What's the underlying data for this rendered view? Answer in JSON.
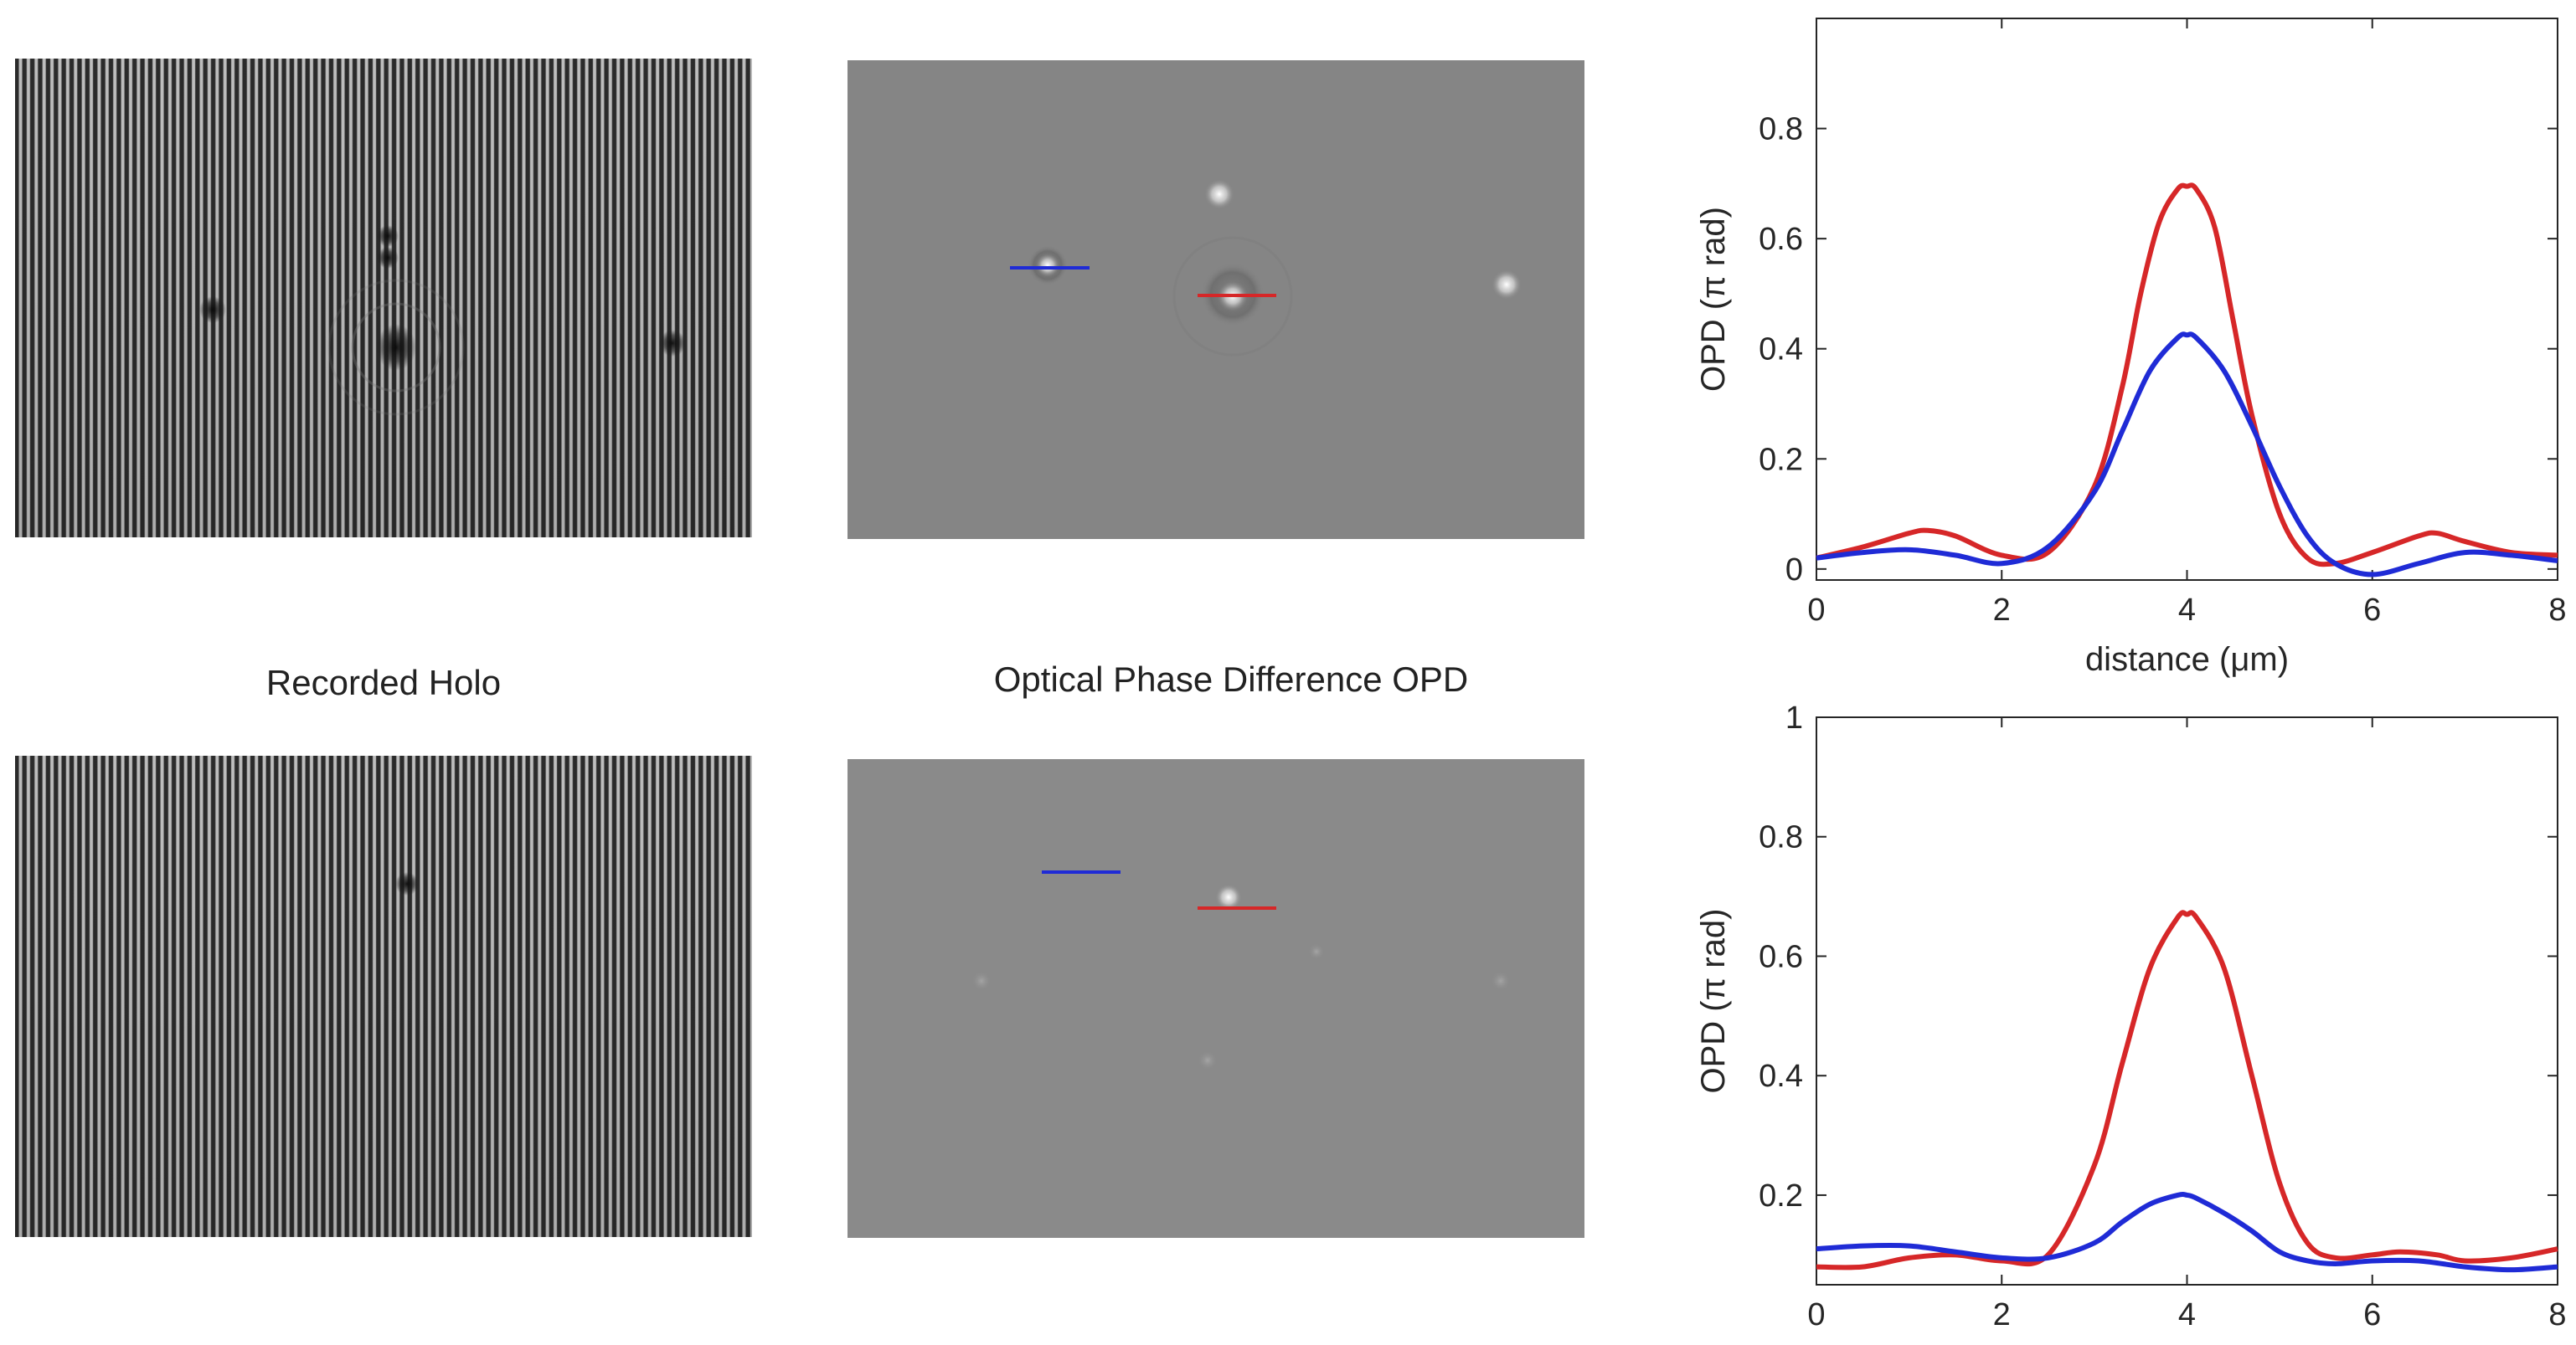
{
  "captions": {
    "holo": "Recorded Holo",
    "opd": "Optical Phase Difference OPD"
  },
  "colors": {
    "red": "#d62728",
    "blue": "#1f2bd6",
    "axis": "#262626"
  },
  "chart_data": [
    {
      "type": "line",
      "title": "",
      "xlabel": "distance (μm)",
      "ylabel": "OPD (π rad)",
      "xlim": [
        0,
        8
      ],
      "ylim": [
        -0.02,
        1.0
      ],
      "xticks": [
        "0",
        "2",
        "4",
        "6",
        "8"
      ],
      "yticks": [
        "0",
        "0.2",
        "0.4",
        "0.6",
        "0.8"
      ],
      "series": [
        {
          "color": "#d62728",
          "x": [
            0,
            0.5,
            1.0,
            1.2,
            1.5,
            2.0,
            2.5,
            3.0,
            3.3,
            3.5,
            3.7,
            3.9,
            4.0,
            4.1,
            4.3,
            4.5,
            4.7,
            5.0,
            5.3,
            5.6,
            6.0,
            6.5,
            6.7,
            7.0,
            7.5,
            8.0
          ],
          "y": [
            0.02,
            0.04,
            0.065,
            0.07,
            0.06,
            0.025,
            0.03,
            0.15,
            0.33,
            0.5,
            0.63,
            0.69,
            0.695,
            0.69,
            0.62,
            0.45,
            0.28,
            0.1,
            0.02,
            0.01,
            0.03,
            0.06,
            0.065,
            0.05,
            0.03,
            0.025
          ]
        },
        {
          "color": "#1f2bd6",
          "x": [
            0,
            0.5,
            1.0,
            1.5,
            2.0,
            2.5,
            3.0,
            3.3,
            3.6,
            3.9,
            4.0,
            4.1,
            4.4,
            4.7,
            5.0,
            5.3,
            5.6,
            6.0,
            6.5,
            7.0,
            7.5,
            8.0
          ],
          "y": [
            0.02,
            0.03,
            0.035,
            0.025,
            0.01,
            0.04,
            0.14,
            0.25,
            0.36,
            0.42,
            0.425,
            0.42,
            0.36,
            0.26,
            0.15,
            0.06,
            0.01,
            -0.01,
            0.01,
            0.03,
            0.025,
            0.015
          ]
        }
      ]
    },
    {
      "type": "line",
      "title": "",
      "xlabel": "",
      "ylabel": "OPD (π rad)",
      "xlim": [
        0,
        8
      ],
      "ylim": [
        0.05,
        1.0
      ],
      "xticks": [
        "0",
        "2",
        "4",
        "6",
        "8"
      ],
      "yticks": [
        "0.2",
        "0.4",
        "0.6",
        "0.8",
        "1"
      ],
      "series": [
        {
          "color": "#d62728",
          "x": [
            0,
            0.5,
            1.0,
            1.5,
            2.0,
            2.5,
            3.0,
            3.3,
            3.6,
            3.9,
            4.0,
            4.1,
            4.4,
            4.7,
            5.0,
            5.3,
            5.6,
            6.0,
            6.3,
            6.7,
            7.0,
            7.5,
            8.0
          ],
          "y": [
            0.08,
            0.08,
            0.095,
            0.1,
            0.09,
            0.1,
            0.25,
            0.42,
            0.58,
            0.665,
            0.67,
            0.665,
            0.58,
            0.4,
            0.22,
            0.12,
            0.095,
            0.1,
            0.105,
            0.1,
            0.09,
            0.095,
            0.11
          ]
        },
        {
          "color": "#1f2bd6",
          "x": [
            0,
            0.5,
            1.0,
            1.5,
            2.0,
            2.5,
            3.0,
            3.3,
            3.6,
            3.9,
            4.0,
            4.1,
            4.4,
            4.7,
            5.0,
            5.3,
            5.6,
            6.0,
            6.5,
            7.0,
            7.5,
            8.0
          ],
          "y": [
            0.11,
            0.115,
            0.115,
            0.105,
            0.095,
            0.095,
            0.12,
            0.155,
            0.185,
            0.2,
            0.2,
            0.195,
            0.17,
            0.14,
            0.105,
            0.09,
            0.085,
            0.09,
            0.09,
            0.08,
            0.075,
            0.08
          ]
        }
      ]
    }
  ]
}
